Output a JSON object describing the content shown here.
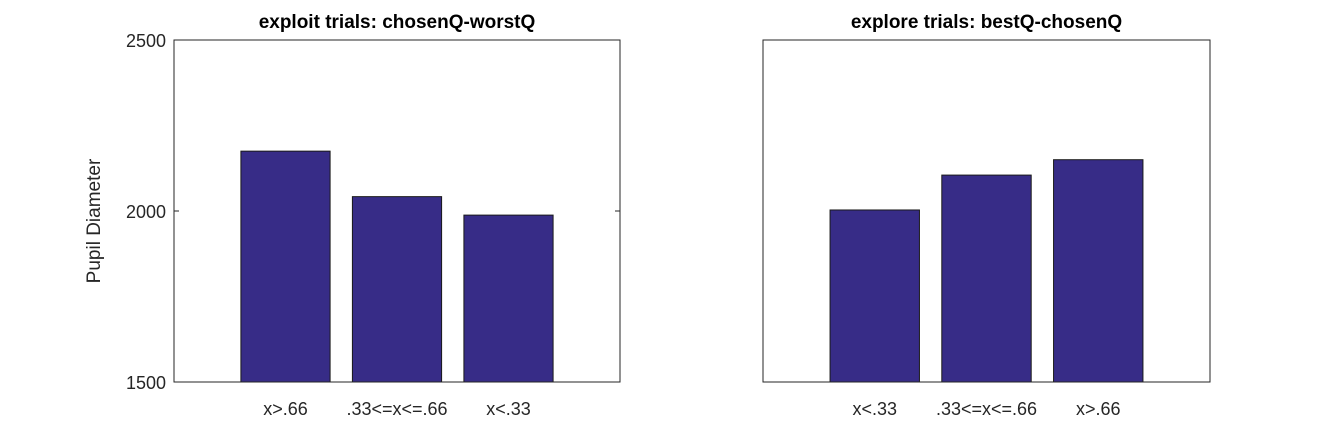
{
  "chart_data": [
    {
      "type": "bar",
      "title": "exploit trials: chosenQ-worstQ",
      "ylabel": "Pupil Diameter",
      "xlabel": "",
      "categories": [
        "x>.66",
        ".33<=x<=.66",
        "x<.33"
      ],
      "values": [
        2175,
        2042,
        1988
      ],
      "ylim": [
        1500,
        2500
      ],
      "yticks": [
        1500,
        2000,
        2500
      ],
      "grid": false,
      "bar_color": "#372c87"
    },
    {
      "type": "bar",
      "title": "explore trials: bestQ-chosenQ",
      "ylabel": "",
      "xlabel": "",
      "categories": [
        "x<.33",
        ".33<=x<=.66",
        "x>.66"
      ],
      "values": [
        2003,
        2105,
        2150
      ],
      "ylim": [
        1500,
        2500
      ],
      "yticks": [],
      "grid": false,
      "bar_color": "#372c87"
    }
  ]
}
